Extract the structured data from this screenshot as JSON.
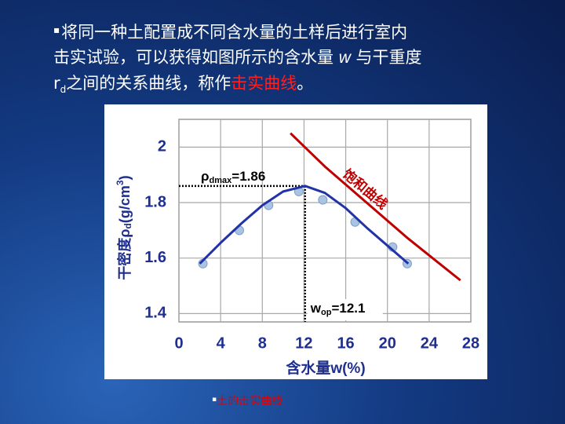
{
  "slide": {
    "lines": [
      [
        "将同一种土配置成不同含水量的土样后进行室内"
      ],
      [
        "击实试验，可以获得如图所示的含水量 ",
        "w",
        " 与干重度"
      ],
      [
        "r",
        "d",
        "之间的关系曲线，称作",
        "击实曲线",
        "。"
      ]
    ],
    "caption": "土的击实曲线"
  },
  "chart_data": {
    "type": "line",
    "y_title": [
      "干密度",
      "ρ",
      "d",
      "(g/cm",
      "3",
      ")"
    ],
    "x_title": "含水量w(%)",
    "xlim": [
      0,
      28
    ],
    "xticks": [
      0,
      4,
      8,
      12,
      16,
      20,
      24,
      28
    ],
    "ylim": [
      1.37,
      2.1
    ],
    "yticks": [
      1.4,
      1.6,
      1.8,
      2.0
    ],
    "grid": true,
    "series": [
      {
        "type": "scatter",
        "color": "#a9c4e3",
        "x": [
          2.3,
          5.8,
          8.6,
          11.5,
          13.8,
          16.9,
          20.5,
          21.9
        ],
        "values": [
          1.58,
          1.7,
          1.79,
          1.84,
          1.81,
          1.73,
          1.64,
          1.58
        ]
      },
      {
        "type": "line",
        "color": "#2233a8",
        "x": [
          2,
          4,
          6,
          8,
          10,
          12.1,
          14,
          16,
          18,
          20,
          22
        ],
        "values": [
          1.58,
          1.655,
          1.725,
          1.79,
          1.84,
          1.86,
          1.835,
          1.78,
          1.71,
          1.645,
          1.58
        ]
      },
      {
        "type": "line",
        "name": "饱和曲线",
        "color": "#c00000",
        "x": [
          10.7,
          14,
          18,
          22,
          25,
          27
        ],
        "values": [
          2.05,
          1.93,
          1.8,
          1.67,
          1.58,
          1.52
        ]
      }
    ],
    "peak_label": [
      "ρ",
      "dmax",
      "=1.86"
    ],
    "opt_label": [
      "w",
      "op",
      "=12.1"
    ]
  }
}
